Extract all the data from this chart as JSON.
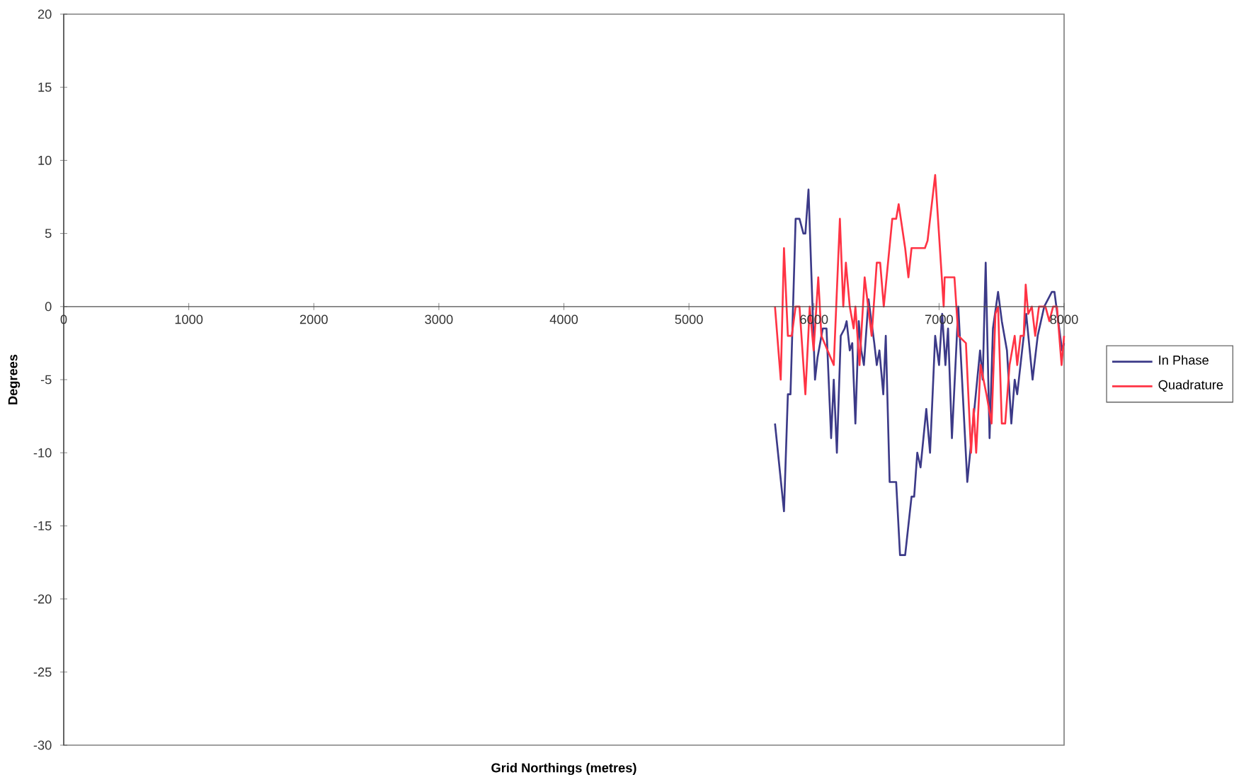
{
  "chart_data": {
    "type": "line",
    "xlabel": "Grid Northings (metres)",
    "ylabel": "Degrees",
    "xlim": [
      0,
      8000
    ],
    "ylim": [
      -30,
      20
    ],
    "xticks": [
      0,
      1000,
      2000,
      3000,
      4000,
      5000,
      6000,
      7000,
      8000
    ],
    "yticks": [
      -30,
      -25,
      -20,
      -15,
      -10,
      -5,
      0,
      5,
      10,
      15,
      20
    ],
    "legend": "right",
    "series": [
      {
        "name": "In Phase",
        "color": "#3c3a88",
        "x": [
          5688,
          5760,
          5791,
          5812,
          5853,
          5884,
          5915,
          5931,
          5956,
          6008,
          6028,
          6070,
          6100,
          6137,
          6158,
          6183,
          6214,
          6245,
          6261,
          6286,
          6306,
          6331,
          6358,
          6378,
          6399,
          6436,
          6482,
          6502,
          6523,
          6554,
          6574,
          6605,
          6657,
          6688,
          6729,
          6780,
          6801,
          6826,
          6852,
          6898,
          6928,
          6969,
          7000,
          7025,
          7051,
          7072,
          7103,
          7154,
          7226,
          7328,
          7349,
          7373,
          7404,
          7431,
          7472,
          7502,
          7543,
          7578,
          7605,
          7625,
          7697,
          7748,
          7789,
          7841,
          7902,
          7923,
          7953,
          7984,
          8000
        ],
        "values": [
          -8,
          -14,
          -6,
          -6,
          6,
          6,
          5,
          5,
          8,
          -5,
          -3.5,
          -1.5,
          -1.5,
          -9,
          -5,
          -10,
          -2,
          -1.5,
          -1,
          -3,
          -2.5,
          -8,
          -1,
          -3,
          -4,
          0.5,
          -2.5,
          -4,
          -3,
          -6,
          -2,
          -12,
          -12,
          -17,
          -17,
          -13,
          -13,
          -10,
          -11,
          -7,
          -10,
          -2,
          -4,
          -0.5,
          -4,
          -1.5,
          -9,
          0,
          -12,
          -3,
          -5,
          3,
          -9,
          -1.5,
          1,
          -1,
          -3,
          -8,
          -5,
          -6,
          -0.5,
          -5,
          -2,
          0,
          1,
          1,
          -1,
          -3,
          -2.5
        ]
      },
      {
        "name": "Quadrature",
        "color": "#ff3344",
        "x": [
          5688,
          5734,
          5760,
          5791,
          5822,
          5853,
          5884,
          5931,
          5966,
          5997,
          6034,
          6059,
          6158,
          6207,
          6234,
          6255,
          6286,
          6317,
          6331,
          6364,
          6405,
          6461,
          6502,
          6529,
          6558,
          6626,
          6657,
          6677,
          6729,
          6755,
          6780,
          6887,
          6908,
          6969,
          7037,
          7045,
          7123,
          7154,
          7215,
          7256,
          7277,
          7297,
          7332,
          7379,
          7420,
          7451,
          7472,
          7502,
          7529,
          7564,
          7605,
          7625,
          7652,
          7677,
          7693,
          7713,
          7742,
          7769,
          7799,
          7851,
          7882,
          7912,
          7943,
          7980,
          8000
        ],
        "values": [
          0,
          -5,
          4,
          -2,
          -2,
          0,
          0,
          -6,
          0,
          -3,
          2,
          -2,
          -4,
          6,
          0,
          3,
          0,
          -1.5,
          0,
          -4,
          2,
          -2,
          3,
          3,
          0,
          6,
          6,
          7,
          4,
          2,
          4,
          4,
          4.5,
          9,
          0,
          2,
          2,
          -2,
          -2.5,
          -10,
          -7,
          -10,
          -4,
          -6,
          -8,
          -0.5,
          0,
          -8,
          -8,
          -4,
          -2,
          -4,
          -2,
          -2,
          1.5,
          -0.5,
          0,
          -2,
          0,
          0,
          -1,
          0,
          0,
          -4,
          -2
        ]
      }
    ]
  }
}
